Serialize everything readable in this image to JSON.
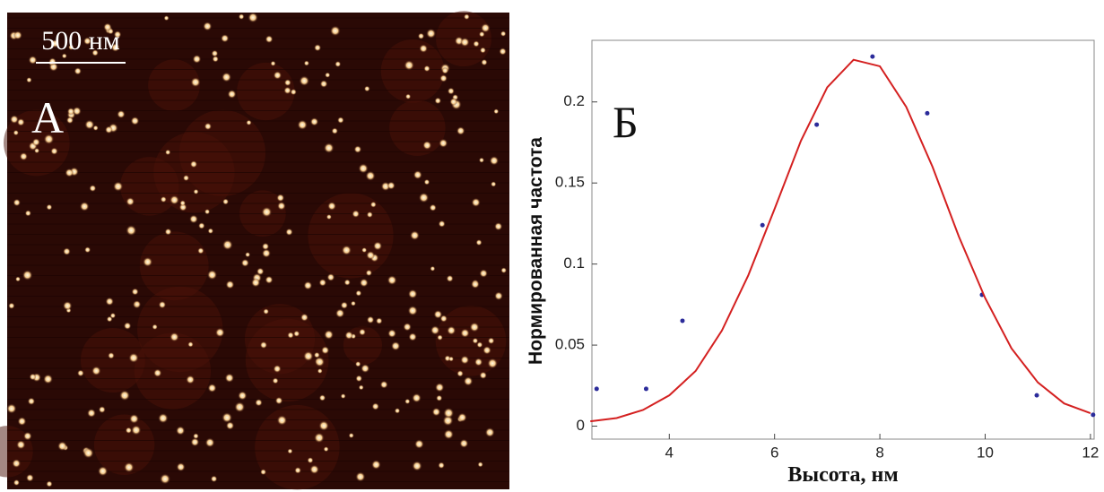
{
  "image": {
    "scale_bar": "500 нм",
    "label": "А"
  },
  "chart_data": {
    "type": "line",
    "panel_label": "Б",
    "x_label": "Высота, нм",
    "y_label": "Нормированная частота",
    "xlim": [
      2.53,
      12.07
    ],
    "xticks": [
      4,
      6,
      8,
      10,
      12
    ],
    "ylim": [
      -0.008,
      0.238
    ],
    "yticks": [
      0,
      0.05,
      0.1,
      0.15,
      0.2
    ],
    "series": [
      {
        "type": "scatter",
        "color": "#2b2b9a",
        "x": [
          2.62,
          3.56,
          4.25,
          5.77,
          6.8,
          7.86,
          8.9,
          9.94,
          10.98,
          12.05
        ],
        "values": [
          0.023,
          0.023,
          0.065,
          0.124,
          0.186,
          0.228,
          0.193,
          0.081,
          0.019,
          0.007
        ]
      },
      {
        "type": "line",
        "color": "#d42020",
        "x": [
          2.5,
          3,
          3.5,
          4,
          4.5,
          5,
          5.5,
          6,
          6.5,
          7,
          7.5,
          8,
          8.5,
          9,
          9.5,
          10,
          10.5,
          11,
          11.5,
          12
        ],
        "values": [
          0.003,
          0.005,
          0.01,
          0.019,
          0.034,
          0.059,
          0.093,
          0.134,
          0.176,
          0.209,
          0.226,
          0.222,
          0.197,
          0.16,
          0.117,
          0.079,
          0.048,
          0.027,
          0.014,
          0.008
        ]
      }
    ]
  }
}
